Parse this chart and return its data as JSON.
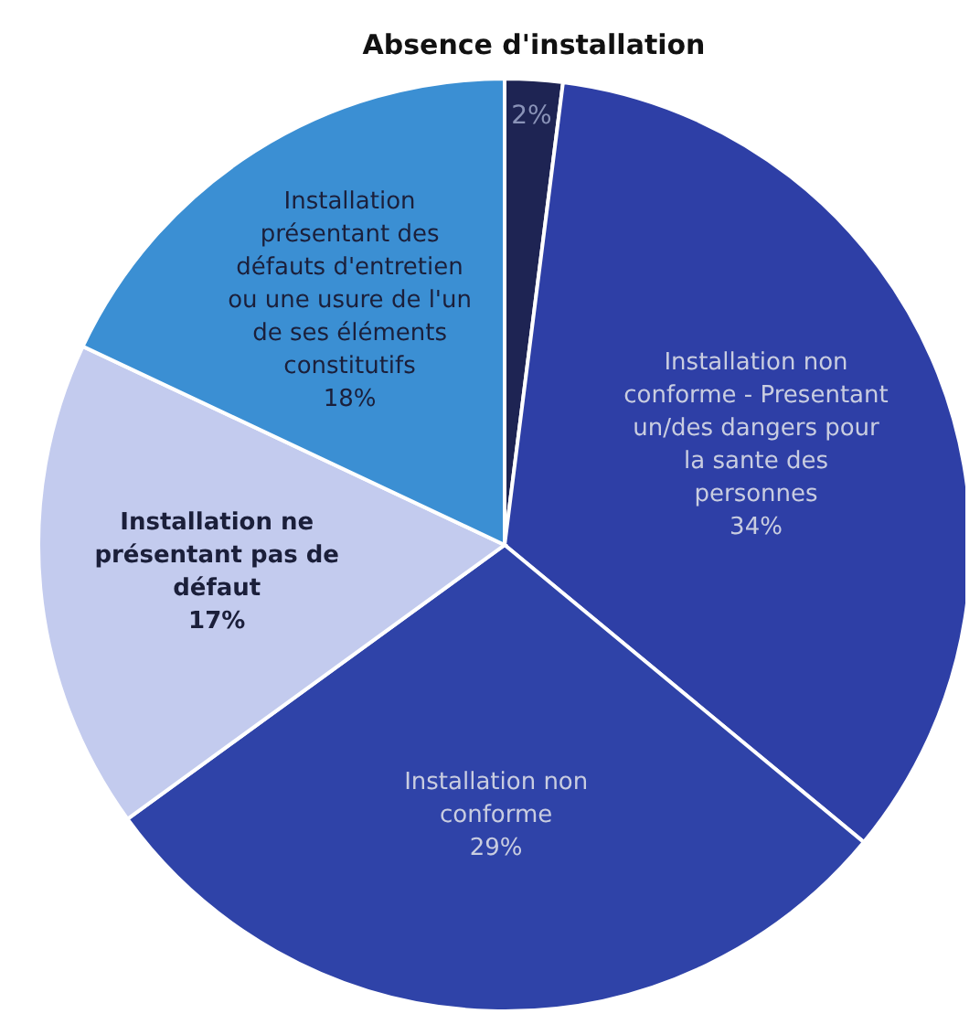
{
  "chart_data": {
    "type": "pie",
    "categories": [
      "Absence d'installation",
      "Installation non conforme - Presentant un/des dangers pour la sante des personnes",
      "Installation non conforme",
      "Installation ne présentant pas de défaut",
      "Installation présentant des défauts d'entretien ou une usure de l'un de ses éléments constitutifs"
    ],
    "values": [
      2,
      34,
      29,
      17,
      18
    ],
    "colors": [
      "#1e2453",
      "#2e3fa6",
      "#2f43a8",
      "#c3cbee",
      "#3b8fd3"
    ],
    "value_labels": [
      "2%",
      "34%",
      "29%",
      "17%",
      "18%"
    ],
    "legend": false
  }
}
